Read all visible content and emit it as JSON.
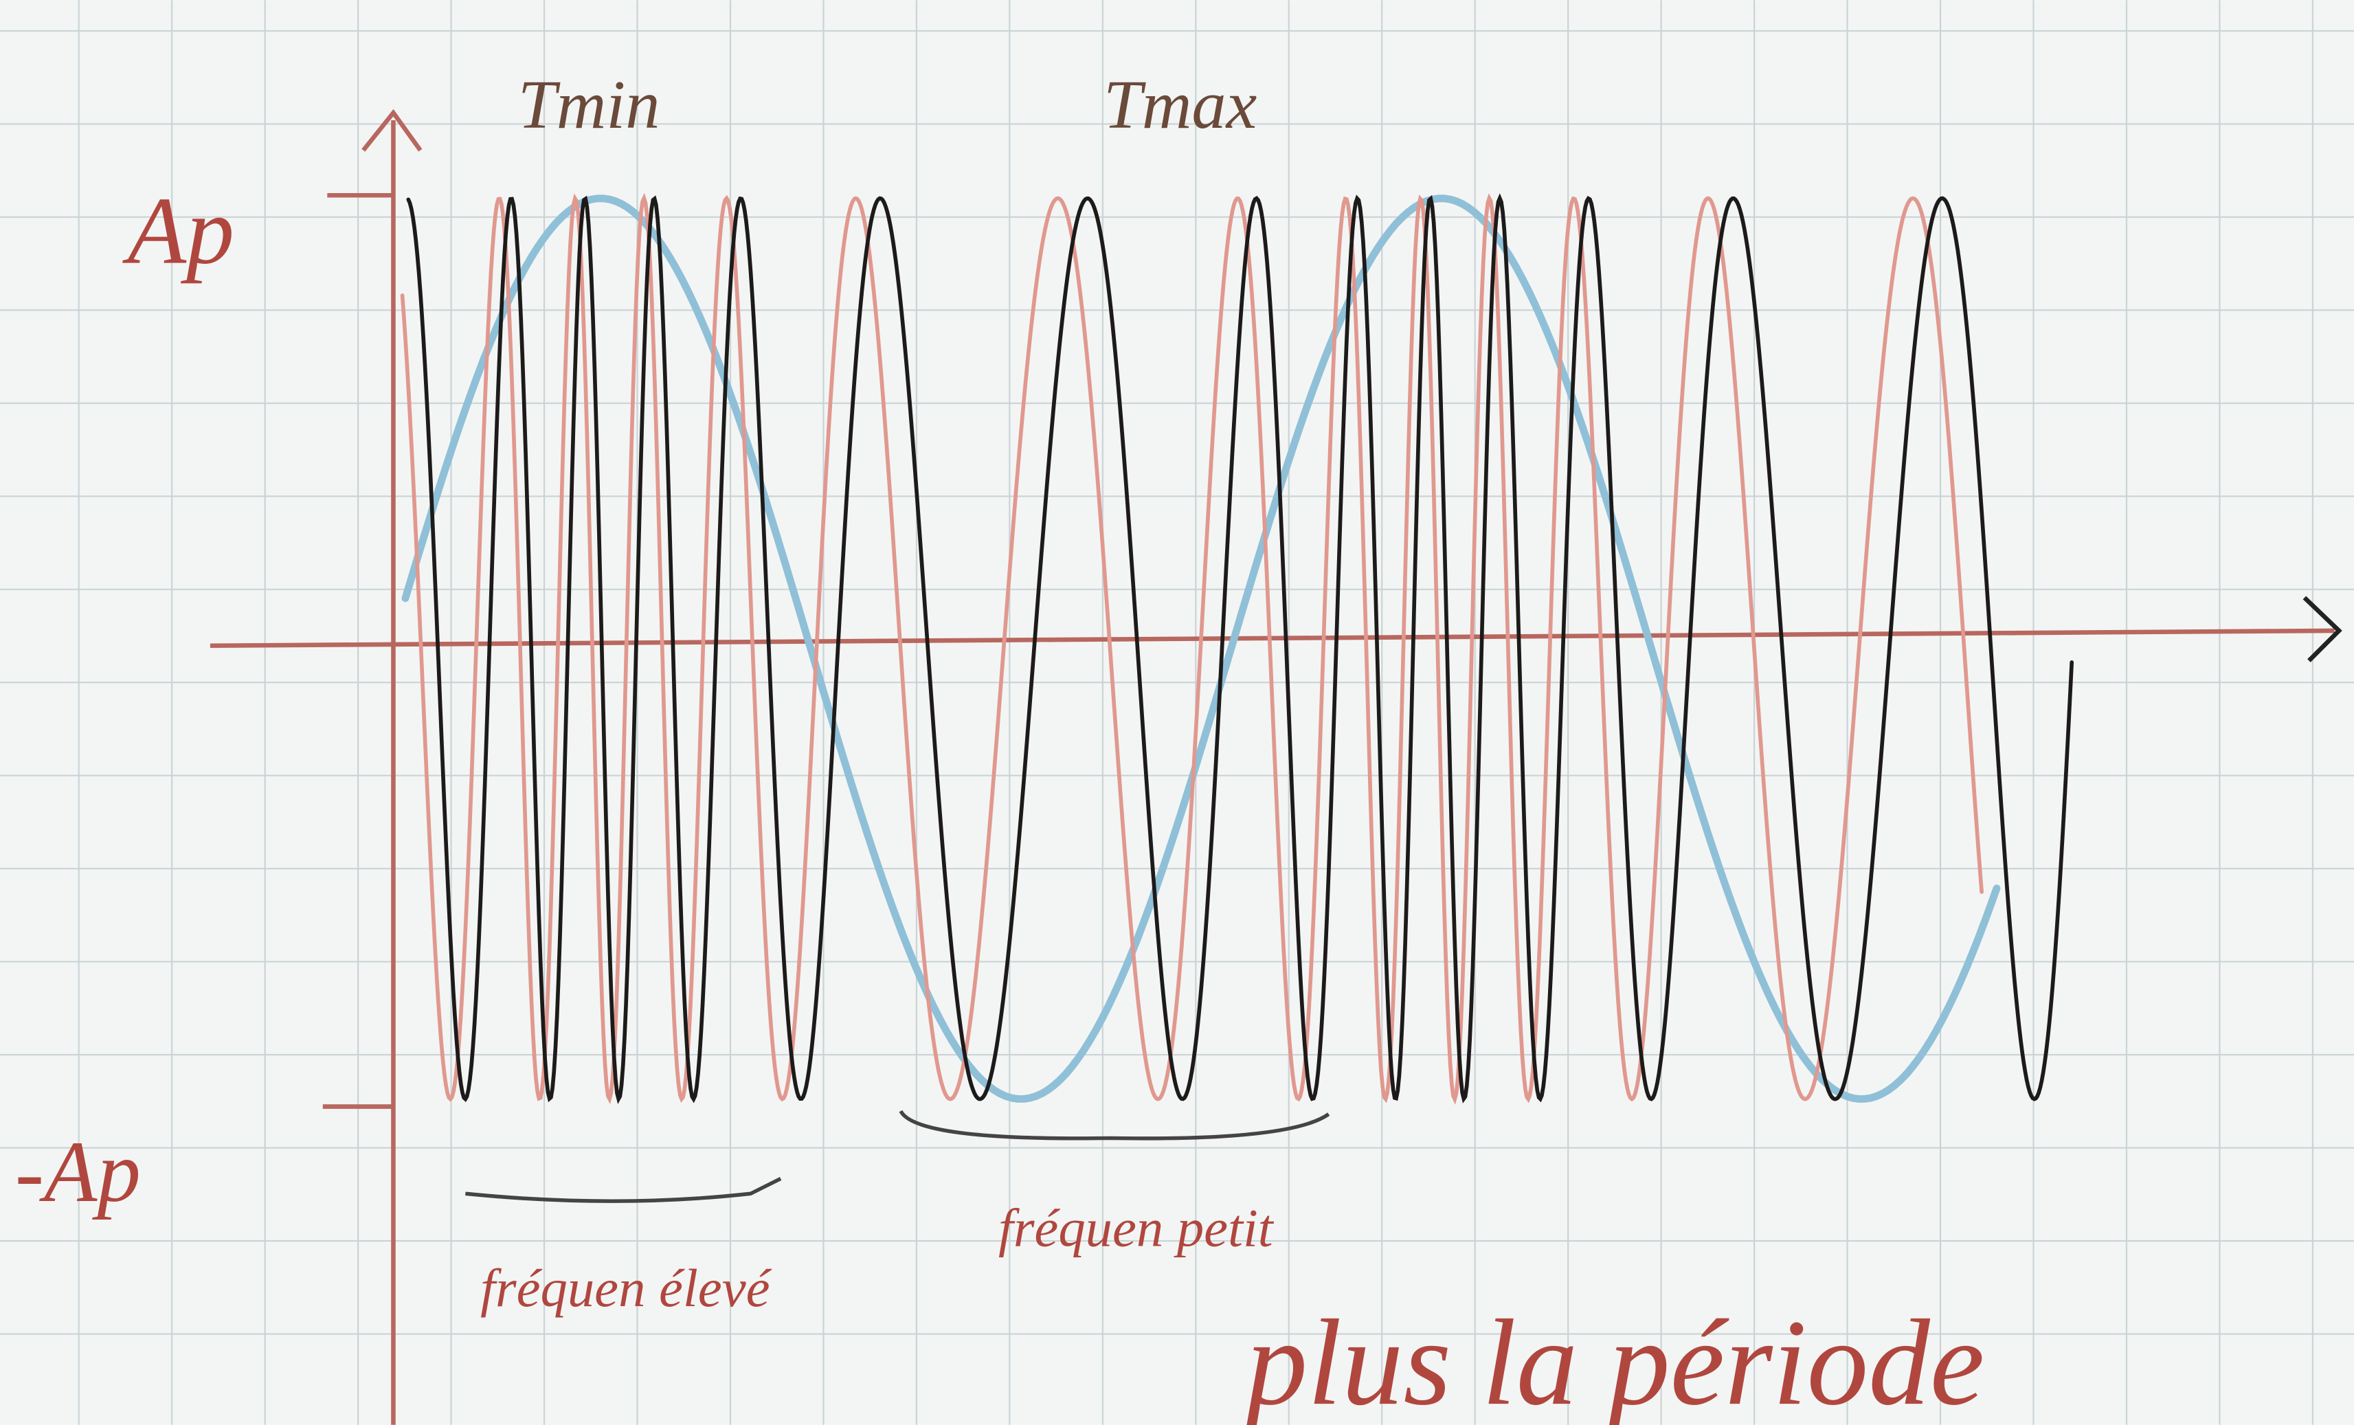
{
  "labels": {
    "amplitude_pos": "Ap",
    "amplitude_neg": "-Ap",
    "t_min": "Tmin",
    "t_max": "Tmax",
    "freq_high": "fréquen élevé",
    "freq_low": "fréquen petit",
    "caption": "plus la période"
  }
}
